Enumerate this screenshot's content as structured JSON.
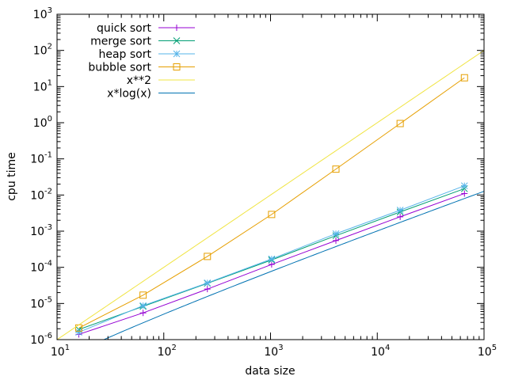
{
  "chart_data": {
    "type": "line",
    "xlabel": "data size",
    "ylabel": "cpu time",
    "x_scale": "log",
    "y_scale": "log",
    "xlim": [
      10,
      100000
    ],
    "ylim": [
      1e-06,
      1000
    ],
    "x_ticks": [
      {
        "value": 10,
        "base": "10",
        "exp": "1"
      },
      {
        "value": 100,
        "base": "10",
        "exp": "2"
      },
      {
        "value": 1000,
        "base": "10",
        "exp": "3"
      },
      {
        "value": 10000,
        "base": "10",
        "exp": "4"
      },
      {
        "value": 100000,
        "base": "10",
        "exp": "5"
      }
    ],
    "y_ticks": [
      {
        "value": 1e-06,
        "base": "10",
        "exp": "-6"
      },
      {
        "value": 1e-05,
        "base": "10",
        "exp": "-5"
      },
      {
        "value": 0.0001,
        "base": "10",
        "exp": "-4"
      },
      {
        "value": 0.001,
        "base": "10",
        "exp": "-3"
      },
      {
        "value": 0.01,
        "base": "10",
        "exp": "-2"
      },
      {
        "value": 0.1,
        "base": "10",
        "exp": "-1"
      },
      {
        "value": 1,
        "base": "10",
        "exp": "0"
      },
      {
        "value": 10,
        "base": "10",
        "exp": "1"
      },
      {
        "value": 100,
        "base": "10",
        "exp": "2"
      },
      {
        "value": 1000,
        "base": "10",
        "exp": "3"
      }
    ],
    "grid": false,
    "legend": "top-left",
    "series": [
      {
        "name": "quick sort",
        "color": "#9400d3",
        "marker": "plus",
        "x": [
          16,
          64,
          256,
          1024,
          4096,
          16384,
          65536
        ],
        "y": [
          1.4e-06,
          5.5e-06,
          2.5e-05,
          0.00012,
          0.00055,
          0.0025,
          0.011
        ]
      },
      {
        "name": "merge sort",
        "color": "#009e73",
        "marker": "cross",
        "x": [
          16,
          64,
          256,
          1024,
          4096,
          16384,
          65536
        ],
        "y": [
          1.9e-06,
          8.3e-06,
          3.6e-05,
          0.00016,
          0.00075,
          0.0034,
          0.015
        ]
      },
      {
        "name": "heap sort",
        "color": "#56b4e9",
        "marker": "star",
        "x": [
          16,
          64,
          256,
          1024,
          4096,
          16384,
          65536
        ],
        "y": [
          1.6e-06,
          8.7e-06,
          3.7e-05,
          0.00017,
          0.00085,
          0.0038,
          0.018
        ]
      },
      {
        "name": "bubble sort",
        "color": "#e69f00",
        "marker": "square",
        "x": [
          16,
          64,
          256,
          1024,
          4096,
          16384,
          65536
        ],
        "y": [
          2.1e-06,
          1.7e-05,
          0.0002,
          0.0029,
          0.052,
          0.95,
          17.5
        ]
      },
      {
        "name": "x**2",
        "color": "#f0e442",
        "marker": "none",
        "function": "x**2",
        "coef": 1e-08
      },
      {
        "name": "x*log(x)",
        "color": "#0072b2",
        "marker": "none",
        "function": "x*log(x)",
        "coef": 1.1e-08
      }
    ]
  }
}
